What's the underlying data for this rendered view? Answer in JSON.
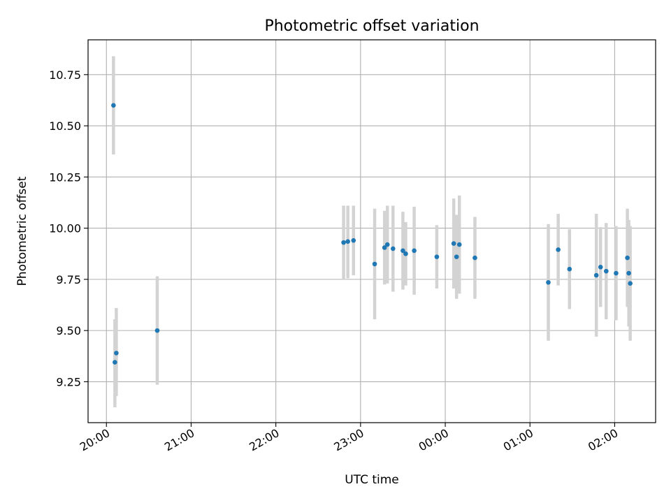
{
  "chart_data": {
    "type": "scatter",
    "title": "Photometric offset variation",
    "xlabel": "UTC time",
    "ylabel": "Photometric offset",
    "x_axis_type": "time",
    "xlim": [
      "19:47",
      "02:29"
    ],
    "ylim": [
      9.05,
      10.92
    ],
    "x_ticks": [
      "20:00",
      "21:00",
      "22:00",
      "23:00",
      "00:00",
      "01:00",
      "02:00"
    ],
    "y_ticks": [
      "9.25",
      "9.50",
      "9.75",
      "10.00",
      "10.25",
      "10.50",
      "10.75"
    ],
    "grid": true,
    "colors": {
      "point": "#1f77b4",
      "error_bar": "#d3d3d3",
      "grid": "#b0b0b0"
    },
    "points": [
      {
        "x": "20:05",
        "y": 10.6,
        "err_low": 0.24,
        "err_high": 0.24
      },
      {
        "x": "20:06",
        "y": 9.345,
        "err_low": 0.22,
        "err_high": 0.21
      },
      {
        "x": "20:07",
        "y": 9.39,
        "err_low": 0.21,
        "err_high": 0.22
      },
      {
        "x": "20:36",
        "y": 9.5,
        "err_low": 0.265,
        "err_high": 0.265
      },
      {
        "x": "22:48",
        "y": 9.93,
        "err_low": 0.18,
        "err_high": 0.18
      },
      {
        "x": "22:51",
        "y": 9.935,
        "err_low": 0.18,
        "err_high": 0.175
      },
      {
        "x": "22:55",
        "y": 9.94,
        "err_low": 0.17,
        "err_high": 0.17
      },
      {
        "x": "23:10",
        "y": 9.825,
        "err_low": 0.27,
        "err_high": 0.27
      },
      {
        "x": "23:17",
        "y": 9.905,
        "err_low": 0.18,
        "err_high": 0.18
      },
      {
        "x": "23:19",
        "y": 9.92,
        "err_low": 0.19,
        "err_high": 0.19
      },
      {
        "x": "23:23",
        "y": 9.9,
        "err_low": 0.21,
        "err_high": 0.21
      },
      {
        "x": "23:30",
        "y": 9.89,
        "err_low": 0.19,
        "err_high": 0.19
      },
      {
        "x": "23:32",
        "y": 9.875,
        "err_low": 0.155,
        "err_high": 0.155
      },
      {
        "x": "23:38",
        "y": 9.89,
        "err_low": 0.215,
        "err_high": 0.215
      },
      {
        "x": "23:54",
        "y": 9.86,
        "err_low": 0.155,
        "err_high": 0.155
      },
      {
        "x": "00:06",
        "y": 9.925,
        "err_low": 0.22,
        "err_high": 0.22
      },
      {
        "x": "00:08",
        "y": 9.86,
        "err_low": 0.205,
        "err_high": 0.205
      },
      {
        "x": "00:10",
        "y": 9.92,
        "err_low": 0.24,
        "err_high": 0.24
      },
      {
        "x": "00:21",
        "y": 9.855,
        "err_low": 0.2,
        "err_high": 0.2
      },
      {
        "x": "01:13",
        "y": 9.735,
        "err_low": 0.285,
        "err_high": 0.285
      },
      {
        "x": "01:20",
        "y": 9.895,
        "err_low": 0.175,
        "err_high": 0.175
      },
      {
        "x": "01:28",
        "y": 9.8,
        "err_low": 0.195,
        "err_high": 0.195
      },
      {
        "x": "01:47",
        "y": 9.77,
        "err_low": 0.3,
        "err_high": 0.3
      },
      {
        "x": "01:50",
        "y": 9.81,
        "err_low": 0.195,
        "err_high": 0.195
      },
      {
        "x": "01:54",
        "y": 9.79,
        "err_low": 0.235,
        "err_high": 0.235
      },
      {
        "x": "02:01",
        "y": 9.78,
        "err_low": 0.23,
        "err_high": 0.23
      },
      {
        "x": "02:09",
        "y": 9.855,
        "err_low": 0.24,
        "err_high": 0.24
      },
      {
        "x": "02:10",
        "y": 9.78,
        "err_low": 0.26,
        "err_high": 0.26
      },
      {
        "x": "02:11",
        "y": 9.73,
        "err_low": 0.28,
        "err_high": 0.28
      }
    ]
  }
}
